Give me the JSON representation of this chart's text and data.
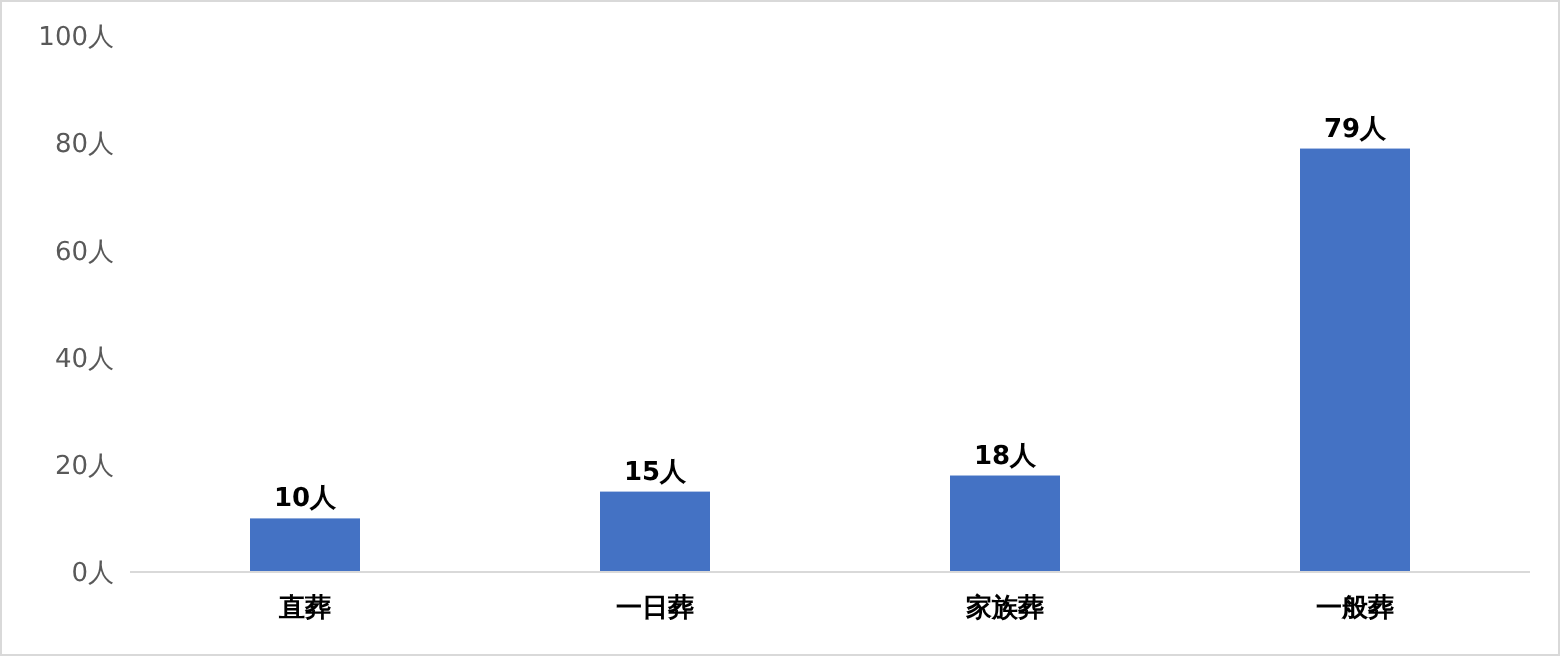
{
  "chart_data": {
    "type": "bar",
    "categories": [
      "直葬",
      "一日葬",
      "家族葬",
      "一般葬"
    ],
    "values": [
      10,
      15,
      18,
      79
    ],
    "value_labels": [
      "10人",
      "15人",
      "18人",
      "79人"
    ],
    "color": "#4472c4",
    "ylim": [
      0,
      100
    ],
    "yticks": [
      {
        "value": 0,
        "label": "0人"
      },
      {
        "value": 20,
        "label": "20人"
      },
      {
        "value": 40,
        "label": "40人"
      },
      {
        "value": 60,
        "label": "60人"
      },
      {
        "value": 80,
        "label": "80人"
      },
      {
        "value": 100,
        "label": "100人"
      }
    ],
    "grid": false
  }
}
